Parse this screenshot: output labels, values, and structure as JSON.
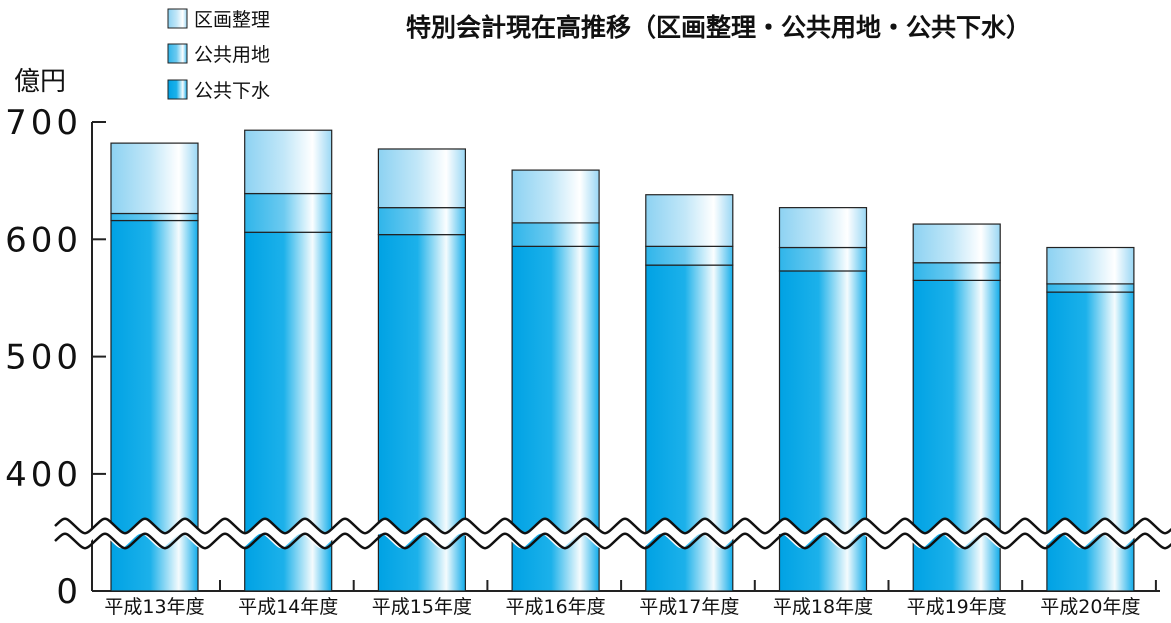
{
  "chart_data": {
    "type": "bar",
    "stacked": true,
    "title": "特別会計現在高推移（区画整理・公共用地・公共下水）",
    "ylabel": "億円",
    "categories": [
      "平成13年度",
      "平成14年度",
      "平成15年度",
      "平成16年度",
      "平成17年度",
      "平成18年度",
      "平成19年度",
      "平成20年度"
    ],
    "series": [
      {
        "name": "公共下水",
        "values": [
          616,
          606,
          604,
          594,
          578,
          573,
          565,
          555
        ],
        "color": "#00a8e8"
      },
      {
        "name": "公共用地",
        "values": [
          6,
          33,
          23,
          20,
          16,
          20,
          15,
          7
        ],
        "color": "#33b8ec"
      },
      {
        "name": "区画整理",
        "values": [
          60,
          54,
          50,
          45,
          44,
          34,
          33,
          31
        ],
        "color": "#a8dcf4"
      }
    ],
    "legend_order": [
      "区画整理",
      "公共用地",
      "公共下水"
    ],
    "yticks": [
      0,
      400,
      500,
      600,
      700
    ],
    "ylim_display": [
      350,
      700
    ],
    "axis_break": true,
    "legend_position": "top-left"
  }
}
